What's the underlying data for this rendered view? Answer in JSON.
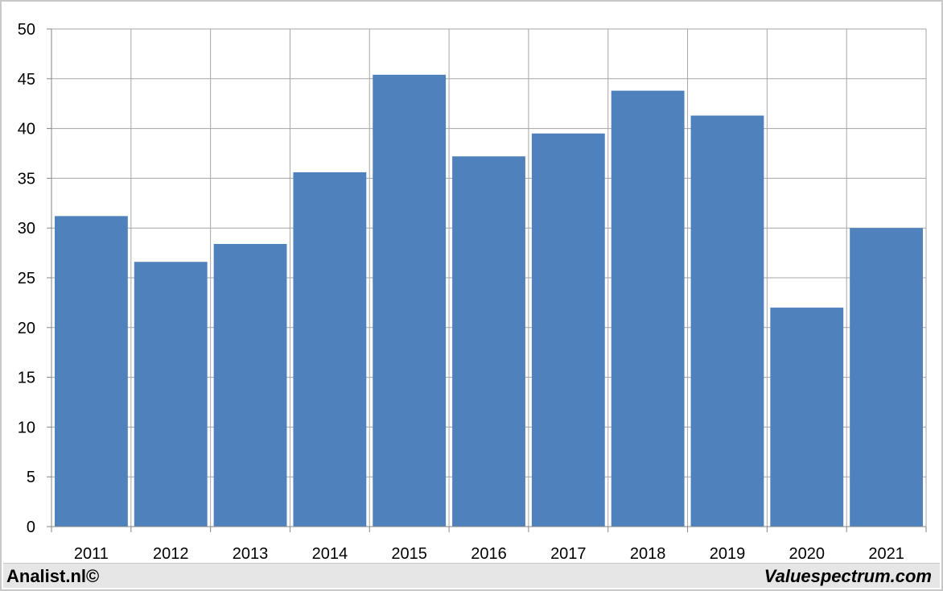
{
  "chart_data": {
    "type": "bar",
    "categories": [
      "2011",
      "2012",
      "2013",
      "2014",
      "2015",
      "2016",
      "2017",
      "2018",
      "2019",
      "2020",
      "2021"
    ],
    "values": [
      31.2,
      26.6,
      28.4,
      35.6,
      45.4,
      37.2,
      39.5,
      43.8,
      41.3,
      22.0,
      30.0
    ],
    "title": "",
    "xlabel": "",
    "ylabel": "",
    "ylim": [
      0,
      50
    ],
    "yticks": [
      "0",
      "5",
      "10",
      "15",
      "20",
      "25",
      "30",
      "35",
      "40",
      "45",
      "50"
    ],
    "grid": true,
    "bar_color": "#4f81bd",
    "grid_color": "#a6a6a6"
  },
  "footer": {
    "left": "Analist.nl©",
    "right": "Valuespectrum.com"
  }
}
